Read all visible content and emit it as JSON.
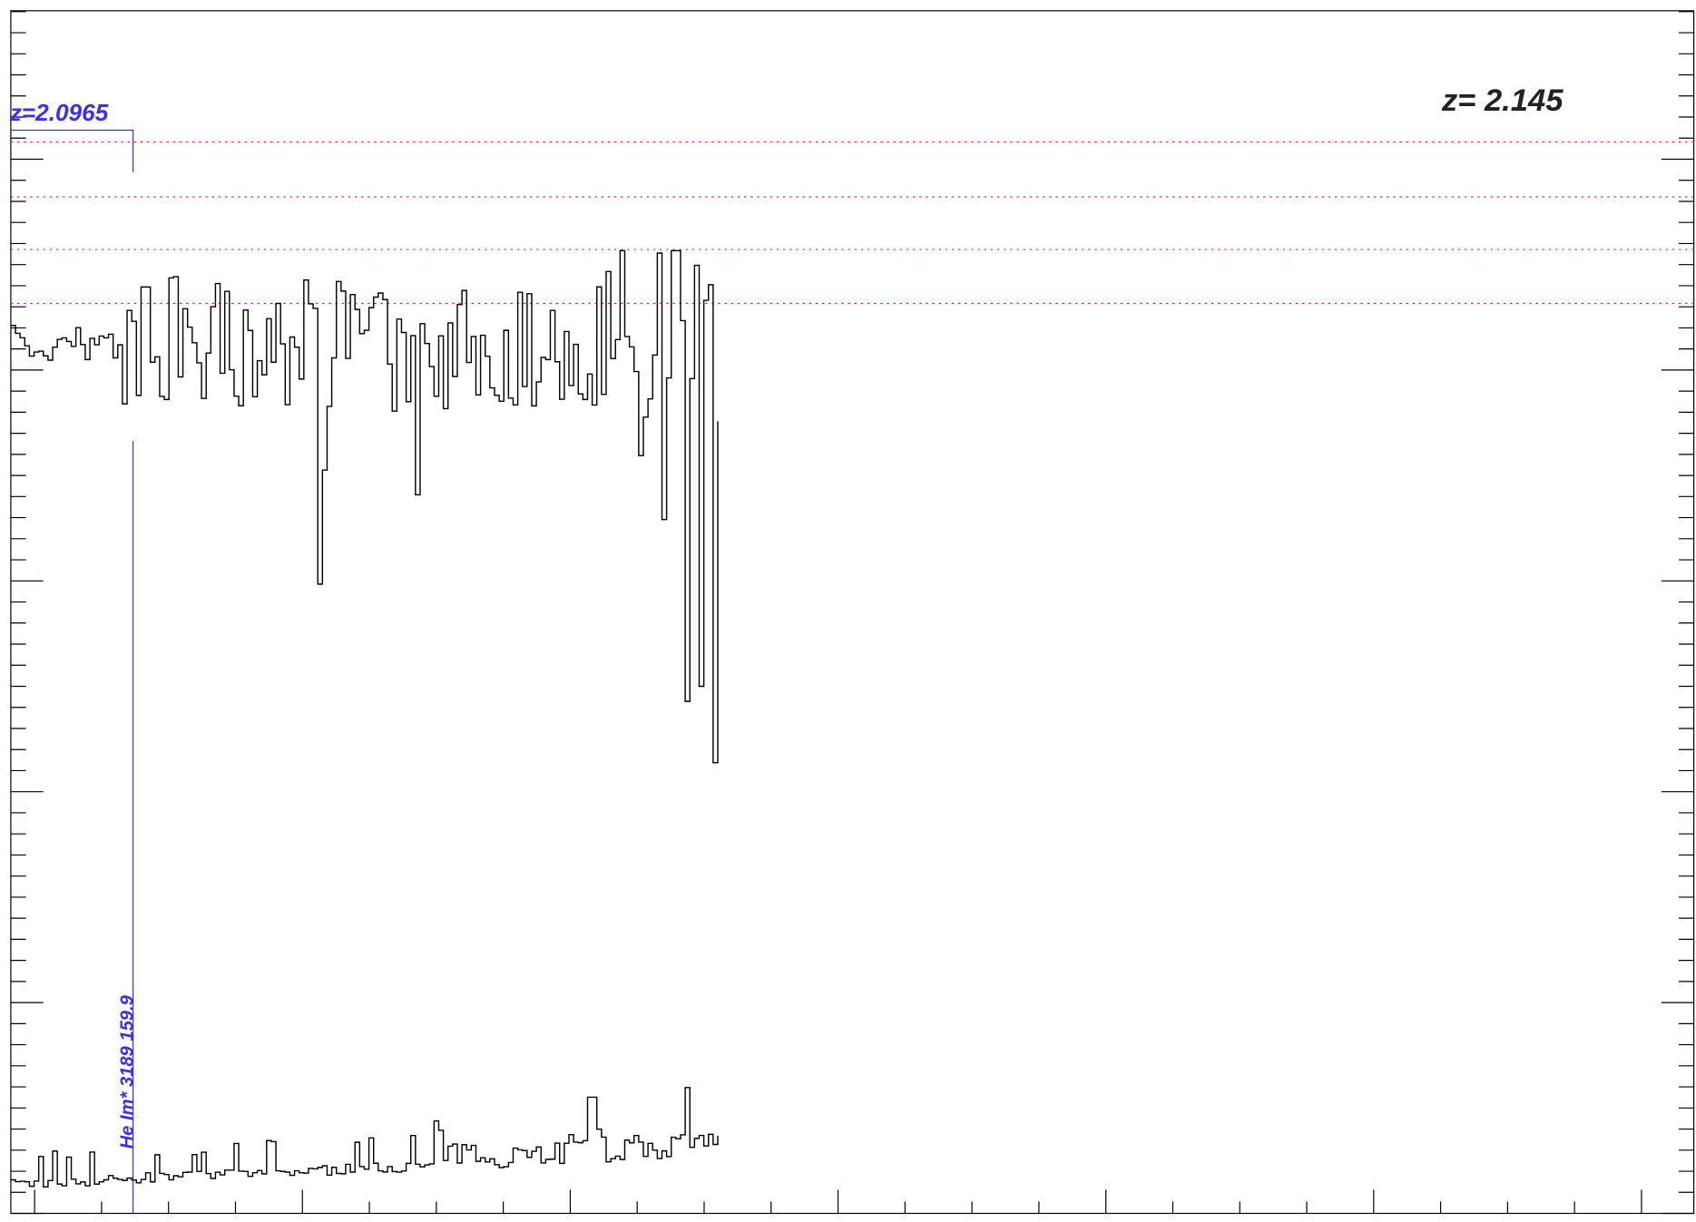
{
  "chart_data": {
    "type": "spectrum",
    "redshift_label": "z= 2.145",
    "marker": {
      "redshift_label": "z=2.0965",
      "line_label": "He Im* 3189 159.9",
      "color": "#3b2ff0"
    },
    "reference_line_color": "#e03030",
    "spectrum_color": "#000000"
  }
}
